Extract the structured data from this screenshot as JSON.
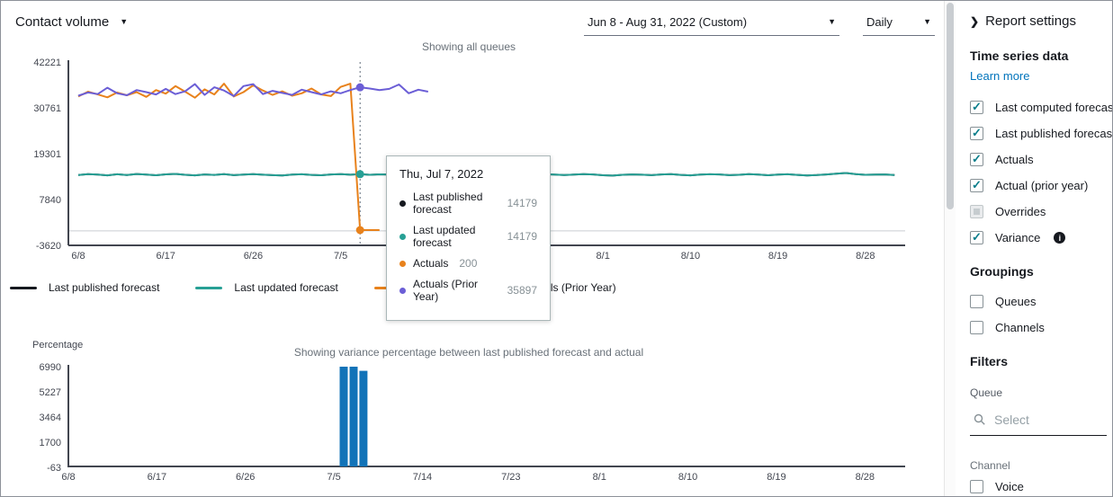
{
  "header": {
    "report_selector": "Contact volume",
    "date_range": "Jun 8 - Aug 31, 2022 (Custom)",
    "granularity": "Daily"
  },
  "sidebar": {
    "title": "Report settings",
    "time_series": {
      "heading": "Time series data",
      "learn_more": "Learn more",
      "items": [
        {
          "label": "Last computed forecast",
          "checked": true,
          "disabled": false
        },
        {
          "label": "Last published forecast",
          "checked": true,
          "disabled": false
        },
        {
          "label": "Actuals",
          "checked": true,
          "disabled": false
        },
        {
          "label": "Actual (prior year)",
          "checked": true,
          "disabled": false
        },
        {
          "label": "Overrides",
          "checked": false,
          "disabled": true
        },
        {
          "label": "Variance",
          "checked": true,
          "disabled": false
        }
      ]
    },
    "groupings": {
      "heading": "Groupings",
      "items": [
        {
          "label": "Queues",
          "checked": false
        },
        {
          "label": "Channels",
          "checked": false
        }
      ]
    },
    "filters": {
      "heading": "Filters",
      "queue_label": "Queue",
      "queue_placeholder": "Select",
      "channel_label": "Channel",
      "channel_items": [
        {
          "label": "Voice",
          "checked": false
        }
      ]
    }
  },
  "legend": {
    "items": [
      {
        "label": "Last published forecast",
        "color": "#16191f"
      },
      {
        "label": "Last updated forecast",
        "color": "#27a095"
      },
      {
        "label": "Actuals",
        "color": "#e8821c"
      },
      {
        "label": "Actuals (Prior Year)",
        "color": "#6b5ed6"
      }
    ]
  },
  "tooltip": {
    "title": "Thu, Jul 7, 2022",
    "rows": [
      {
        "label": "Last published forecast",
        "value": "14179",
        "color": "#16191f"
      },
      {
        "label": "Last updated forecast",
        "value": "14179",
        "color": "#27a095"
      },
      {
        "label": "Actuals",
        "value": "200",
        "color": "#e8821c"
      },
      {
        "label": "Actuals (Prior Year)",
        "value": "35897",
        "color": "#6b5ed6"
      }
    ]
  },
  "chart_data": [
    {
      "type": "line",
      "title": "Showing all queues",
      "start_date": "2022-06-08",
      "x_tick_labels": [
        "6/8",
        "6/17",
        "6/26",
        "7/5",
        "7/14",
        "7/23",
        "8/1",
        "8/10",
        "8/19",
        "8/28"
      ],
      "x_tick_day_offsets": [
        0,
        9,
        18,
        27,
        36,
        45,
        54,
        63,
        72,
        81
      ],
      "y_ticks": [
        42221,
        30761,
        19301,
        7840,
        -3620
      ],
      "ylim": [
        -3620,
        42221
      ],
      "grid": false,
      "zero_line": true,
      "highlight_day_offset": 29,
      "highlight_points": [
        {
          "series": "Actuals (Prior Year)",
          "value": 35897
        },
        {
          "series": "Last updated forecast",
          "value": 14179
        },
        {
          "series": "Actuals",
          "value": 200
        }
      ],
      "series": [
        {
          "name": "Last published forecast",
          "color": "#16191f",
          "start_offset": 0,
          "same_as": "Last updated forecast"
        },
        {
          "name": "Last updated forecast",
          "color": "#27a095",
          "start_offset": 0,
          "values": [
            13960,
            14180,
            14080,
            13890,
            14150,
            13980,
            14220,
            14060,
            13900,
            14130,
            14250,
            14010,
            13880,
            14120,
            13990,
            14200,
            13930,
            14080,
            14210,
            14050,
            13920,
            13840,
            14070,
            14160,
            13990,
            13900,
            14110,
            14200,
            14050,
            14179,
            14020,
            14140,
            14080,
            13950,
            14210,
            14100,
            13910,
            14020,
            14150,
            14060,
            13900,
            13830,
            14010,
            14120,
            14220,
            14040,
            13910,
            14000,
            14160,
            14090,
            13950,
            14070,
            14200,
            14100,
            13900,
            13820,
            14010,
            14110,
            14040,
            13940,
            14120,
            14210,
            13990,
            13890,
            14060,
            14150,
            14100,
            13940,
            14020,
            14200,
            14090,
            13900,
            14060,
            14160,
            13990,
            13860,
            13950,
            14120,
            14310,
            14460,
            14200,
            14010,
            14070,
            14120,
            13960
          ]
        },
        {
          "name": "Actuals",
          "color": "#e8821c",
          "start_offset": 0,
          "values": [
            33600,
            34800,
            34100,
            33400,
            34600,
            33900,
            34700,
            33500,
            35200,
            34300,
            36200,
            34800,
            33300,
            35400,
            34100,
            36800,
            33600,
            34700,
            36400,
            35100,
            34000,
            34900,
            33800,
            34400,
            35600,
            34100,
            33700,
            36000,
            36800,
            200,
            200,
            200
          ]
        },
        {
          "name": "Actuals (Prior Year)",
          "color": "#6b5ed6",
          "start_offset": 0,
          "values": [
            33800,
            34600,
            34200,
            35800,
            34400,
            33900,
            35200,
            34700,
            34100,
            35500,
            34200,
            34900,
            36700,
            34000,
            35900,
            35100,
            33700,
            36200,
            36700,
            34200,
            35000,
            34500,
            34000,
            35300,
            34700,
            34100,
            34900,
            34400,
            35200,
            35897,
            35600,
            35200,
            35500,
            36600,
            34400,
            35300,
            34800
          ]
        }
      ]
    },
    {
      "type": "bar",
      "title": "Showing variance percentage between last published forecast and actual",
      "ylabel": "Percentage",
      "x_tick_labels": [
        "6/8",
        "6/17",
        "6/26",
        "7/5",
        "7/14",
        "7/23",
        "8/1",
        "8/10",
        "8/19",
        "8/28"
      ],
      "x_tick_day_offsets": [
        0,
        9,
        18,
        27,
        36,
        45,
        54,
        63,
        72,
        81
      ],
      "y_ticks": [
        6990,
        5227,
        3464,
        1700,
        -63
      ],
      "ylim": [
        -63,
        6990
      ],
      "grid": false,
      "bar_color": "#1273b8",
      "bars": [
        {
          "date": "7/6",
          "day_offset": 28,
          "value": 6990
        },
        {
          "date": "7/7",
          "day_offset": 29,
          "value": 6990
        },
        {
          "date": "7/8",
          "day_offset": 30,
          "value": 6700
        }
      ]
    }
  ]
}
